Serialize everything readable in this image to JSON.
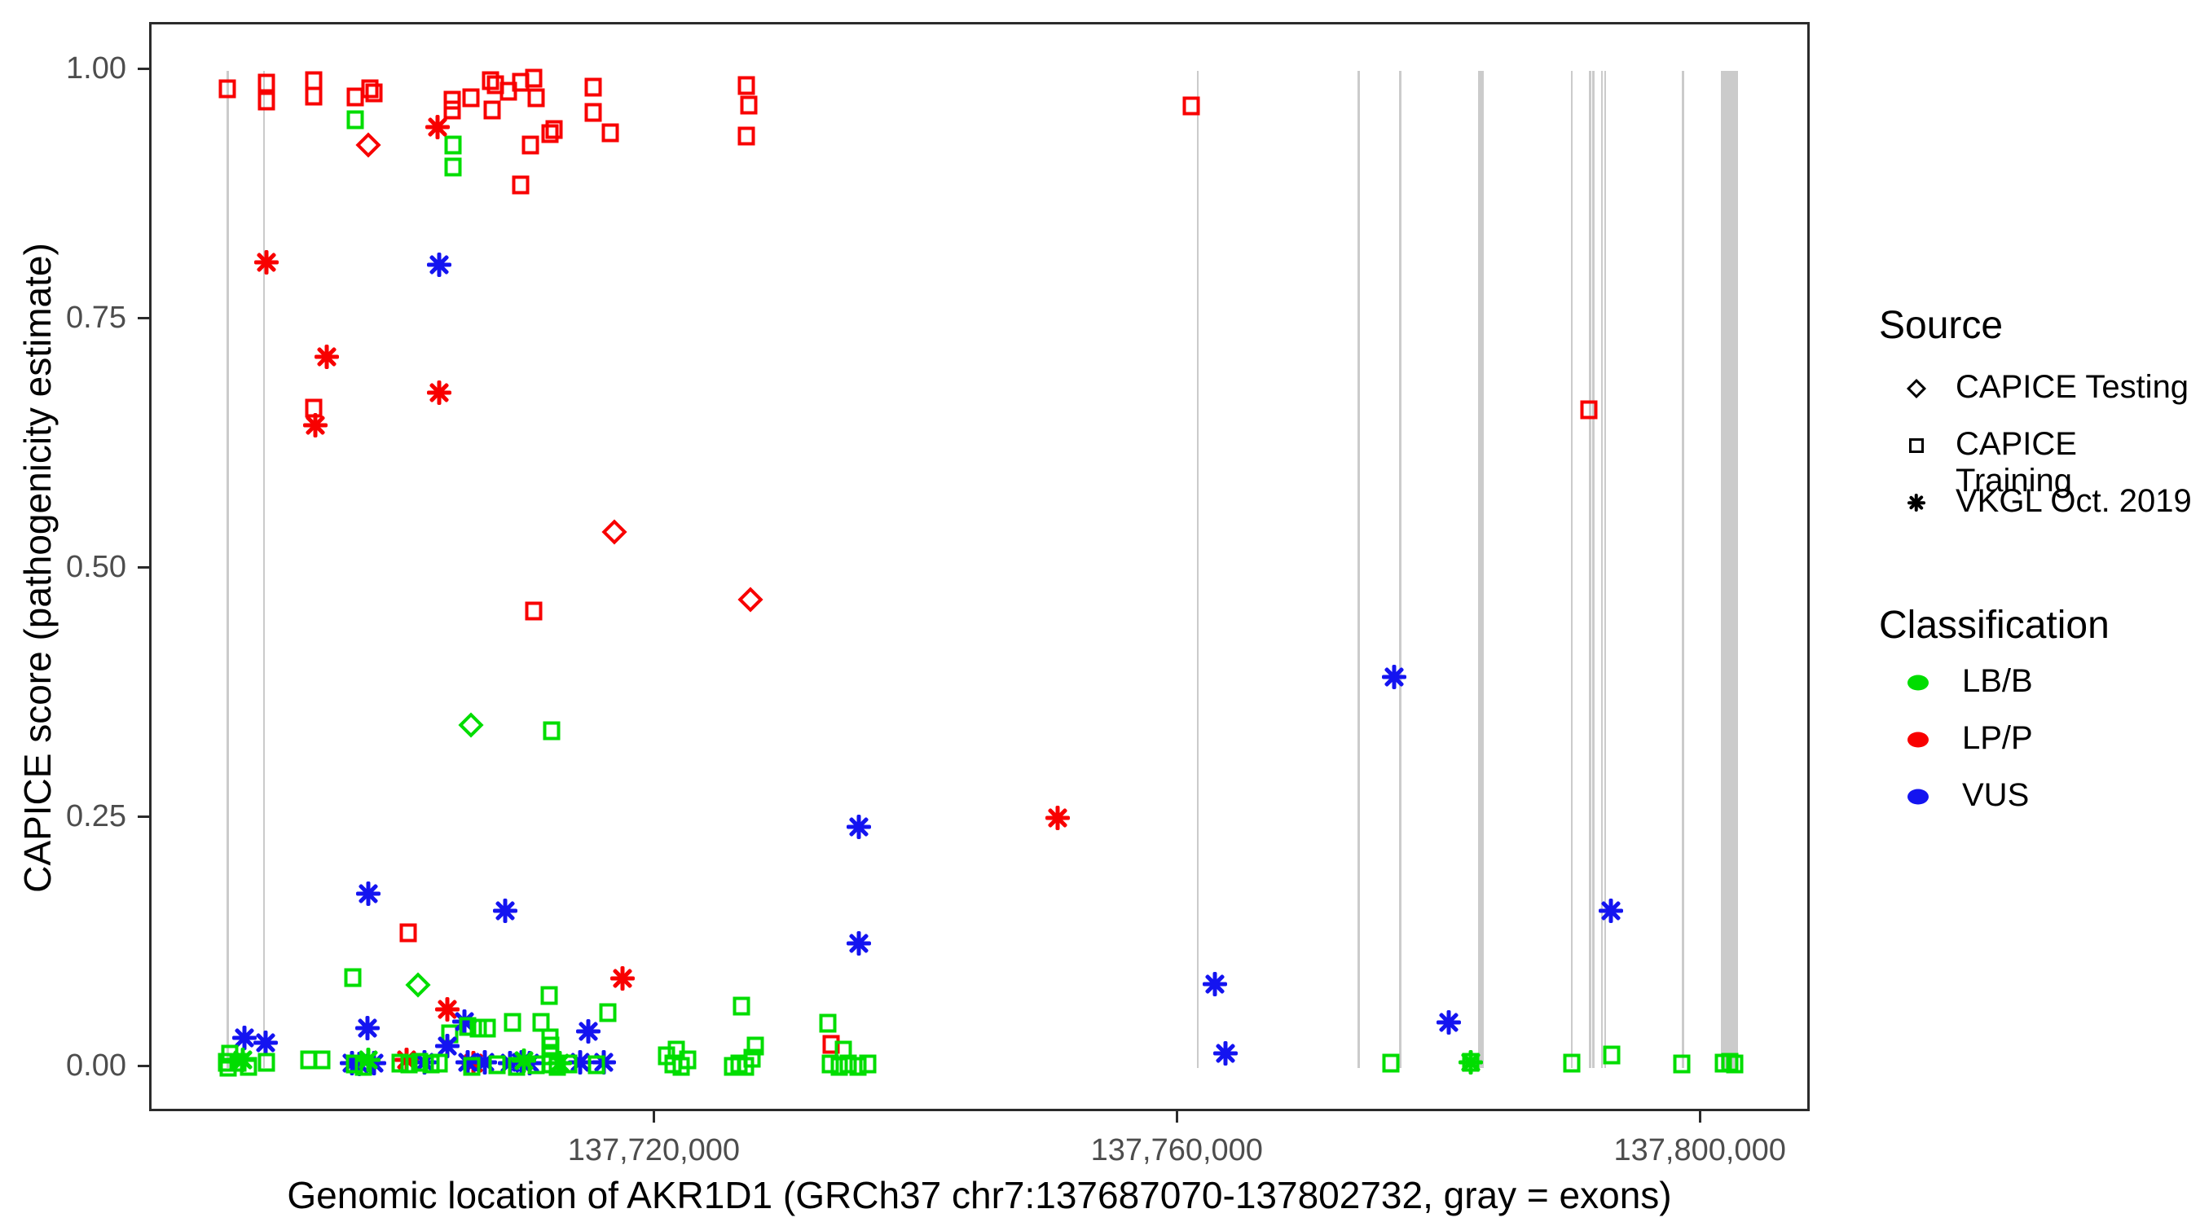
{
  "chart_data": {
    "type": "scatter",
    "title": "",
    "xlabel": "Genomic location of AKR1D1 (GRCh37 chr7:137687070-137802732, gray = exons)",
    "ylabel": "CAPICE score (pathogenicity estimate)",
    "x_domain": [
      137687070,
      137802732
    ],
    "y_domain": [
      0.0,
      1.0
    ],
    "grid": false,
    "x_ticks": [
      {
        "value": 137720000,
        "label": "137,720,000"
      },
      {
        "value": 137760000,
        "label": "137,760,000"
      },
      {
        "value": 137800000,
        "label": "137,800,000"
      }
    ],
    "y_ticks": [
      {
        "value": 0.0,
        "label": "0.00"
      },
      {
        "value": 0.25,
        "label": "0.25"
      },
      {
        "value": 0.5,
        "label": "0.50"
      },
      {
        "value": 0.75,
        "label": "0.75"
      },
      {
        "value": 1.0,
        "label": "1.00"
      }
    ],
    "exon_color": "#cbcbcb",
    "exons_bp": [
      [
        137687150,
        137687280
      ],
      [
        137689930,
        137690060
      ],
      [
        137761330,
        137761460
      ],
      [
        137773630,
        137773760
      ],
      [
        137776830,
        137776970
      ],
      [
        137782880,
        137783320
      ],
      [
        137789930,
        137790060
      ],
      [
        137791330,
        137791460
      ],
      [
        137791580,
        137791710
      ],
      [
        137792230,
        137792360
      ],
      [
        137792480,
        137792610
      ],
      [
        137798430,
        137798560
      ],
      [
        137801430,
        137802732
      ]
    ],
    "legend": {
      "source": {
        "title": "Source",
        "items": [
          {
            "key": "test",
            "label": "CAPICE Testing",
            "glyph": "diamond"
          },
          {
            "key": "train",
            "label": "CAPICE Training",
            "glyph": "square"
          },
          {
            "key": "vkgl",
            "label": "VKGL Oct. 2019",
            "glyph": "asterisk"
          }
        ]
      },
      "classification": {
        "title": "Classification",
        "items": [
          {
            "key": "lbb",
            "label": "LB/B",
            "color": "#00dd00"
          },
          {
            "key": "lpp",
            "label": "LP/P",
            "color": "#f80000"
          },
          {
            "key": "vus",
            "label": "VUS",
            "color": "#1414f0"
          }
        ]
      }
    },
    "colors": {
      "lbb": "#00dd00",
      "lpp": "#f80000",
      "vus": "#1414f0"
    },
    "points": [
      [
        137687200,
        0.982,
        "train",
        "lpp"
      ],
      [
        137690200,
        0.988,
        "train",
        "lpp"
      ],
      [
        137690200,
        0.97,
        "train",
        "lpp"
      ],
      [
        137693800,
        0.99,
        "train",
        "lpp"
      ],
      [
        137693800,
        0.975,
        "train",
        "lpp"
      ],
      [
        137697000,
        0.974,
        "train",
        "lpp"
      ],
      [
        137698100,
        0.982,
        "train",
        "lpp"
      ],
      [
        137698400,
        0.978,
        "train",
        "lpp"
      ],
      [
        137704400,
        0.971,
        "train",
        "lpp"
      ],
      [
        137704400,
        0.961,
        "train",
        "lpp"
      ],
      [
        137705800,
        0.973,
        "train",
        "lpp"
      ],
      [
        137707350,
        0.99,
        "train",
        "lpp"
      ],
      [
        137707700,
        0.986,
        "train",
        "lpp"
      ],
      [
        137707450,
        0.961,
        "train",
        "lpp"
      ],
      [
        137708700,
        0.98,
        "train",
        "lpp"
      ],
      [
        137709600,
        0.989,
        "train",
        "lpp"
      ],
      [
        137710600,
        0.993,
        "train",
        "lpp"
      ],
      [
        137710840,
        0.973,
        "train",
        "lpp"
      ],
      [
        137711900,
        0.937,
        "train",
        "lpp"
      ],
      [
        137712150,
        0.941,
        "train",
        "lpp"
      ],
      [
        137710400,
        0.926,
        "train",
        "lpp"
      ],
      [
        137709600,
        0.886,
        "train",
        "lpp"
      ],
      [
        137715200,
        0.984,
        "train",
        "lpp"
      ],
      [
        137715200,
        0.958,
        "train",
        "lpp"
      ],
      [
        137716500,
        0.938,
        "train",
        "lpp"
      ],
      [
        137726900,
        0.985,
        "train",
        "lpp"
      ],
      [
        137727100,
        0.966,
        "train",
        "lpp"
      ],
      [
        137726900,
        0.935,
        "train",
        "lpp"
      ],
      [
        137760900,
        0.965,
        "train",
        "lpp"
      ],
      [
        137791300,
        0.66,
        "train",
        "lpp"
      ],
      [
        137693770,
        0.662,
        "train",
        "lpp"
      ],
      [
        137710600,
        0.458,
        "train",
        "lpp"
      ],
      [
        137701000,
        0.136,
        "train",
        "lpp"
      ],
      [
        137733400,
        0.024,
        "train",
        "lpp"
      ],
      [
        137697000,
        0.951,
        "train",
        "lbb"
      ],
      [
        137704460,
        0.926,
        "train",
        "lbb"
      ],
      [
        137704460,
        0.904,
        "train",
        "lbb"
      ],
      [
        137712000,
        0.338,
        "train",
        "lbb"
      ],
      [
        137696800,
        0.091,
        "train",
        "lbb"
      ],
      [
        137711800,
        0.073,
        "train",
        "lbb"
      ],
      [
        137716300,
        0.056,
        "train",
        "lbb"
      ],
      [
        137726500,
        0.062,
        "train",
        "lbb"
      ],
      [
        137733100,
        0.045,
        "train",
        "lbb"
      ],
      [
        137704200,
        0.034,
        "train",
        "lbb"
      ],
      [
        137697950,
        0.926,
        "test",
        "lpp"
      ],
      [
        137716800,
        0.538,
        "test",
        "lpp"
      ],
      [
        137727200,
        0.47,
        "test",
        "lpp"
      ],
      [
        137705800,
        0.344,
        "test",
        "lbb"
      ],
      [
        137701800,
        0.083,
        "test",
        "lbb"
      ],
      [
        137703300,
        0.944,
        "vkgl",
        "lpp"
      ],
      [
        137690200,
        0.808,
        "vkgl",
        "lpp"
      ],
      [
        137694800,
        0.713,
        "vkgl",
        "lpp"
      ],
      [
        137703400,
        0.677,
        "vkgl",
        "lpp"
      ],
      [
        137693900,
        0.645,
        "vkgl",
        "lpp"
      ],
      [
        137750700,
        0.251,
        "vkgl",
        "lpp"
      ],
      [
        137717400,
        0.09,
        "vkgl",
        "lpp"
      ],
      [
        137704000,
        0.059,
        "vkgl",
        "lpp"
      ],
      [
        137700900,
        0.008,
        "vkgl",
        "lpp"
      ],
      [
        137706000,
        0.005,
        "vkgl",
        "lpp"
      ],
      [
        137703400,
        0.806,
        "vkgl",
        "vus"
      ],
      [
        137776400,
        0.392,
        "vkgl",
        "vus"
      ],
      [
        137735500,
        0.242,
        "vkgl",
        "vus"
      ],
      [
        137698000,
        0.175,
        "vkgl",
        "vus"
      ],
      [
        137708460,
        0.158,
        "vkgl",
        "vus"
      ],
      [
        137793000,
        0.158,
        "vkgl",
        "vus"
      ],
      [
        137735500,
        0.125,
        "vkgl",
        "vus"
      ],
      [
        137762700,
        0.084,
        "vkgl",
        "vus"
      ],
      [
        137780600,
        0.046,
        "vkgl",
        "vus"
      ],
      [
        137697900,
        0.04,
        "vkgl",
        "vus"
      ],
      [
        137714800,
        0.037,
        "vkgl",
        "vus"
      ],
      [
        137688500,
        0.03,
        "vkgl",
        "vus"
      ],
      [
        137690100,
        0.025,
        "vkgl",
        "vus"
      ],
      [
        137704000,
        0.022,
        "vkgl",
        "vus"
      ],
      [
        137763500,
        0.015,
        "vkgl",
        "vus"
      ],
      [
        137705300,
        0.047,
        "vkgl",
        "vus"
      ],
      [
        137696700,
        0.005,
        "vkgl",
        "vus"
      ],
      [
        137697300,
        0.004,
        "vkgl",
        "vus"
      ],
      [
        137698400,
        0.005,
        "vkgl",
        "vus"
      ],
      [
        137702300,
        0.006,
        "vkgl",
        "vus"
      ],
      [
        137705600,
        0.006,
        "vkgl",
        "vus"
      ],
      [
        137706900,
        0.006,
        "vkgl",
        "vus"
      ],
      [
        137708800,
        0.005,
        "vkgl",
        "vus"
      ],
      [
        137709700,
        0.006,
        "vkgl",
        "vus"
      ],
      [
        137710300,
        0.005,
        "vkgl",
        "vus"
      ],
      [
        137714200,
        0.006,
        "vkgl",
        "vus"
      ],
      [
        137716000,
        0.006,
        "vkgl",
        "vus"
      ],
      [
        137688400,
        0.008,
        "vkgl",
        "lbb"
      ],
      [
        137698000,
        0.008,
        "vkgl",
        "lbb"
      ],
      [
        137709900,
        0.007,
        "vkgl",
        "lbb"
      ],
      [
        137712600,
        0.005,
        "vkgl",
        "lbb"
      ],
      [
        137782300,
        0.006,
        "vkgl",
        "lbb"
      ],
      [
        137687100,
        0.006,
        "train",
        "lbb"
      ],
      [
        137687400,
        0.014,
        "train",
        "lbb"
      ],
      [
        137687260,
        0.001,
        "train",
        "lbb"
      ],
      [
        137688000,
        0.006,
        "train",
        "lbb"
      ],
      [
        137688800,
        0.002,
        "train",
        "lbb"
      ],
      [
        137690200,
        0.006,
        "train",
        "lbb"
      ],
      [
        137693400,
        0.008,
        "train",
        "lbb"
      ],
      [
        137694400,
        0.008,
        "train",
        "lbb"
      ],
      [
        137696900,
        0.004,
        "train",
        "lbb"
      ],
      [
        137697600,
        0.002,
        "train",
        "lbb"
      ],
      [
        137700400,
        0.005,
        "train",
        "lbb"
      ],
      [
        137701100,
        0.004,
        "train",
        "lbb"
      ],
      [
        137701900,
        0.006,
        "train",
        "lbb"
      ],
      [
        137702800,
        0.004,
        "train",
        "lbb"
      ],
      [
        137703400,
        0.005,
        "train",
        "lbb"
      ],
      [
        137705600,
        0.042,
        "train",
        "lbb"
      ],
      [
        137706400,
        0.04,
        "train",
        "lbb"
      ],
      [
        137707100,
        0.04,
        "train",
        "lbb"
      ],
      [
        137709000,
        0.046,
        "train",
        "lbb"
      ],
      [
        137711200,
        0.046,
        "train",
        "lbb"
      ],
      [
        137711900,
        0.03,
        "train",
        "lbb"
      ],
      [
        137711950,
        0.022,
        "train",
        "lbb"
      ],
      [
        137711900,
        0.012,
        "train",
        "lbb"
      ],
      [
        137711950,
        0.004,
        "train",
        "lbb"
      ],
      [
        137705900,
        0.002,
        "train",
        "lbb"
      ],
      [
        137707800,
        0.003,
        "train",
        "lbb"
      ],
      [
        137709300,
        0.002,
        "train",
        "lbb"
      ],
      [
        137710800,
        0.003,
        "train",
        "lbb"
      ],
      [
        137712400,
        0.002,
        "train",
        "lbb"
      ],
      [
        137713300,
        0.004,
        "train",
        "lbb"
      ],
      [
        137715400,
        0.003,
        "train",
        "lbb"
      ],
      [
        137720800,
        0.012,
        "train",
        "lbb"
      ],
      [
        137721300,
        0.004,
        "train",
        "lbb"
      ],
      [
        137721900,
        0.002,
        "train",
        "lbb"
      ],
      [
        137722400,
        0.008,
        "train",
        "lbb"
      ],
      [
        137721500,
        0.018,
        "train",
        "lbb"
      ],
      [
        137725800,
        0.002,
        "train",
        "lbb"
      ],
      [
        137726300,
        0.004,
        "train",
        "lbb"
      ],
      [
        137726800,
        0.002,
        "train",
        "lbb"
      ],
      [
        137727300,
        0.01,
        "train",
        "lbb"
      ],
      [
        137727600,
        0.022,
        "train",
        "lbb"
      ],
      [
        137733300,
        0.004,
        "train",
        "lbb"
      ],
      [
        137734000,
        0.002,
        "train",
        "lbb"
      ],
      [
        137734700,
        0.004,
        "train",
        "lbb"
      ],
      [
        137735400,
        0.002,
        "train",
        "lbb"
      ],
      [
        137736200,
        0.004,
        "train",
        "lbb"
      ],
      [
        137734300,
        0.018,
        "train",
        "lbb"
      ],
      [
        137776200,
        0.005,
        "train",
        "lbb"
      ],
      [
        137790000,
        0.005,
        "train",
        "lbb"
      ],
      [
        137793100,
        0.013,
        "train",
        "lbb"
      ],
      [
        137798400,
        0.004,
        "train",
        "lbb"
      ],
      [
        137801600,
        0.005,
        "train",
        "lbb"
      ],
      [
        137802100,
        0.006,
        "train",
        "lbb"
      ],
      [
        137802500,
        0.004,
        "train",
        "lbb"
      ],
      [
        137782300,
        0.006,
        "train",
        "lbb"
      ]
    ]
  }
}
